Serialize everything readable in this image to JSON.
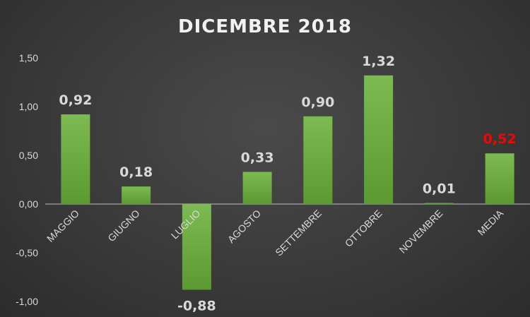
{
  "chart_data": {
    "type": "bar",
    "title": "DICEMBRE 2018",
    "xlabel": "",
    "ylabel": "",
    "categories": [
      "MAGGIO",
      "GIUGNO",
      "LUGLIO",
      "AGOSTO",
      "SETTEMBRE",
      "OTTOBRE",
      "NOVEMBRE",
      "MEDIA"
    ],
    "values": [
      0.92,
      0.18,
      -0.88,
      0.33,
      0.9,
      1.32,
      0.01,
      0.52
    ],
    "data_labels": [
      "0,92",
      "0,18",
      "-0,88",
      "0,33",
      "0,90",
      "1,32",
      "0,01",
      "0,52"
    ],
    "ylim": [
      -1.0,
      1.5
    ],
    "yticks": [
      1.5,
      1.0,
      0.5,
      0.0,
      -0.5,
      -1.0
    ],
    "ytick_labels": [
      "1,50",
      "1,00",
      "0,50",
      "0,00",
      "-0,50",
      "-1,00"
    ],
    "grid": false,
    "legend": "none",
    "bar_color": "#6aaa3e",
    "highlight_label_color": "#ff0000",
    "highlight_index": 7
  }
}
